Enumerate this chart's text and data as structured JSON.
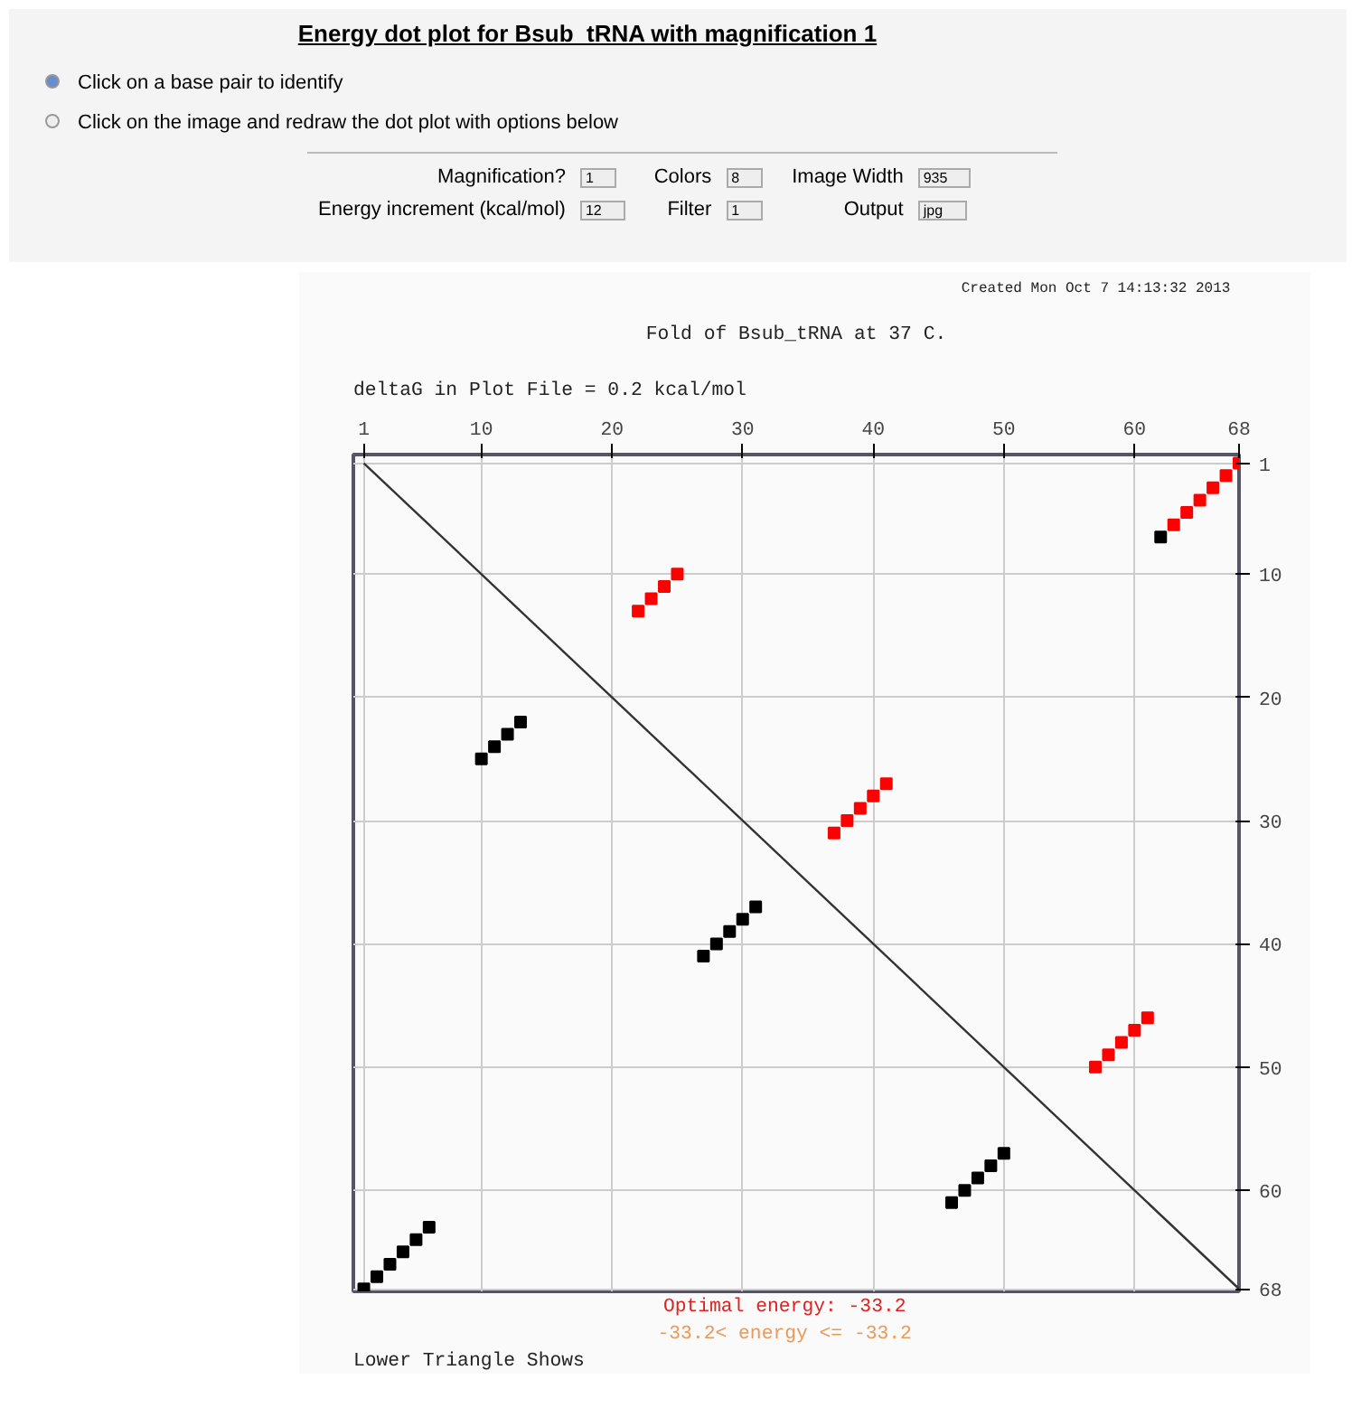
{
  "chart_data": {
    "type": "scatter",
    "title": "Energy dot plot for Bsub_tRNA with magnification 1",
    "subtitle": "Fold of Bsub_tRNA at 37 C.",
    "annotations": [
      "Click on a base pair to identify",
      "Click on the image and redraw the dot plot with options below",
      "Magnification?",
      "1",
      "Colors",
      "8",
      "Image Width",
      "935",
      "Energy increment (kcal/mol)",
      "12",
      "Filter",
      "1",
      "Output",
      "jpg",
      "Created Mon Oct  7 14:13:32 2013",
      "deltaG in Plot File =    0.2 kcal/mol",
      "Lower Triangle Shows",
      "Optimal energy:   -33.2",
      "-33.2< energy <=   -33.2"
    ],
    "xlim": [
      0.2,
      68
    ],
    "ylim": [
      68.2,
      0.3
    ],
    "xticks": [
      1,
      10,
      20,
      30,
      40,
      50,
      60,
      68
    ],
    "yticks": [
      1,
      10,
      20,
      30,
      40,
      50,
      60,
      68
    ],
    "grid": true,
    "marker": "square",
    "series": [
      {
        "color": "#ff0000",
        "x": [
          68,
          67,
          66,
          65,
          64,
          63,
          25,
          24,
          23,
          22,
          37,
          38,
          39,
          40,
          41,
          57,
          58,
          59,
          60,
          61
        ],
        "values": [
          1,
          2,
          3,
          4,
          5,
          6,
          10,
          11,
          12,
          13,
          31,
          30,
          29,
          28,
          27,
          50,
          49,
          48,
          47,
          46
        ]
      },
      {
        "color": "#000000",
        "x": [
          62,
          13,
          12,
          11,
          10,
          27,
          28,
          29,
          30,
          31,
          46,
          47,
          48,
          49,
          50,
          1,
          2,
          3,
          4,
          5,
          6
        ],
        "values": [
          7,
          22,
          23,
          24,
          25,
          41,
          40,
          39,
          38,
          37,
          61,
          60,
          59,
          58,
          57,
          68,
          67,
          66,
          65,
          64,
          63
        ]
      },
      {
        "type": "line",
        "marker": "none",
        "color": "#333333",
        "x": [
          1,
          68
        ],
        "values": [
          1,
          68
        ]
      }
    ]
  }
}
